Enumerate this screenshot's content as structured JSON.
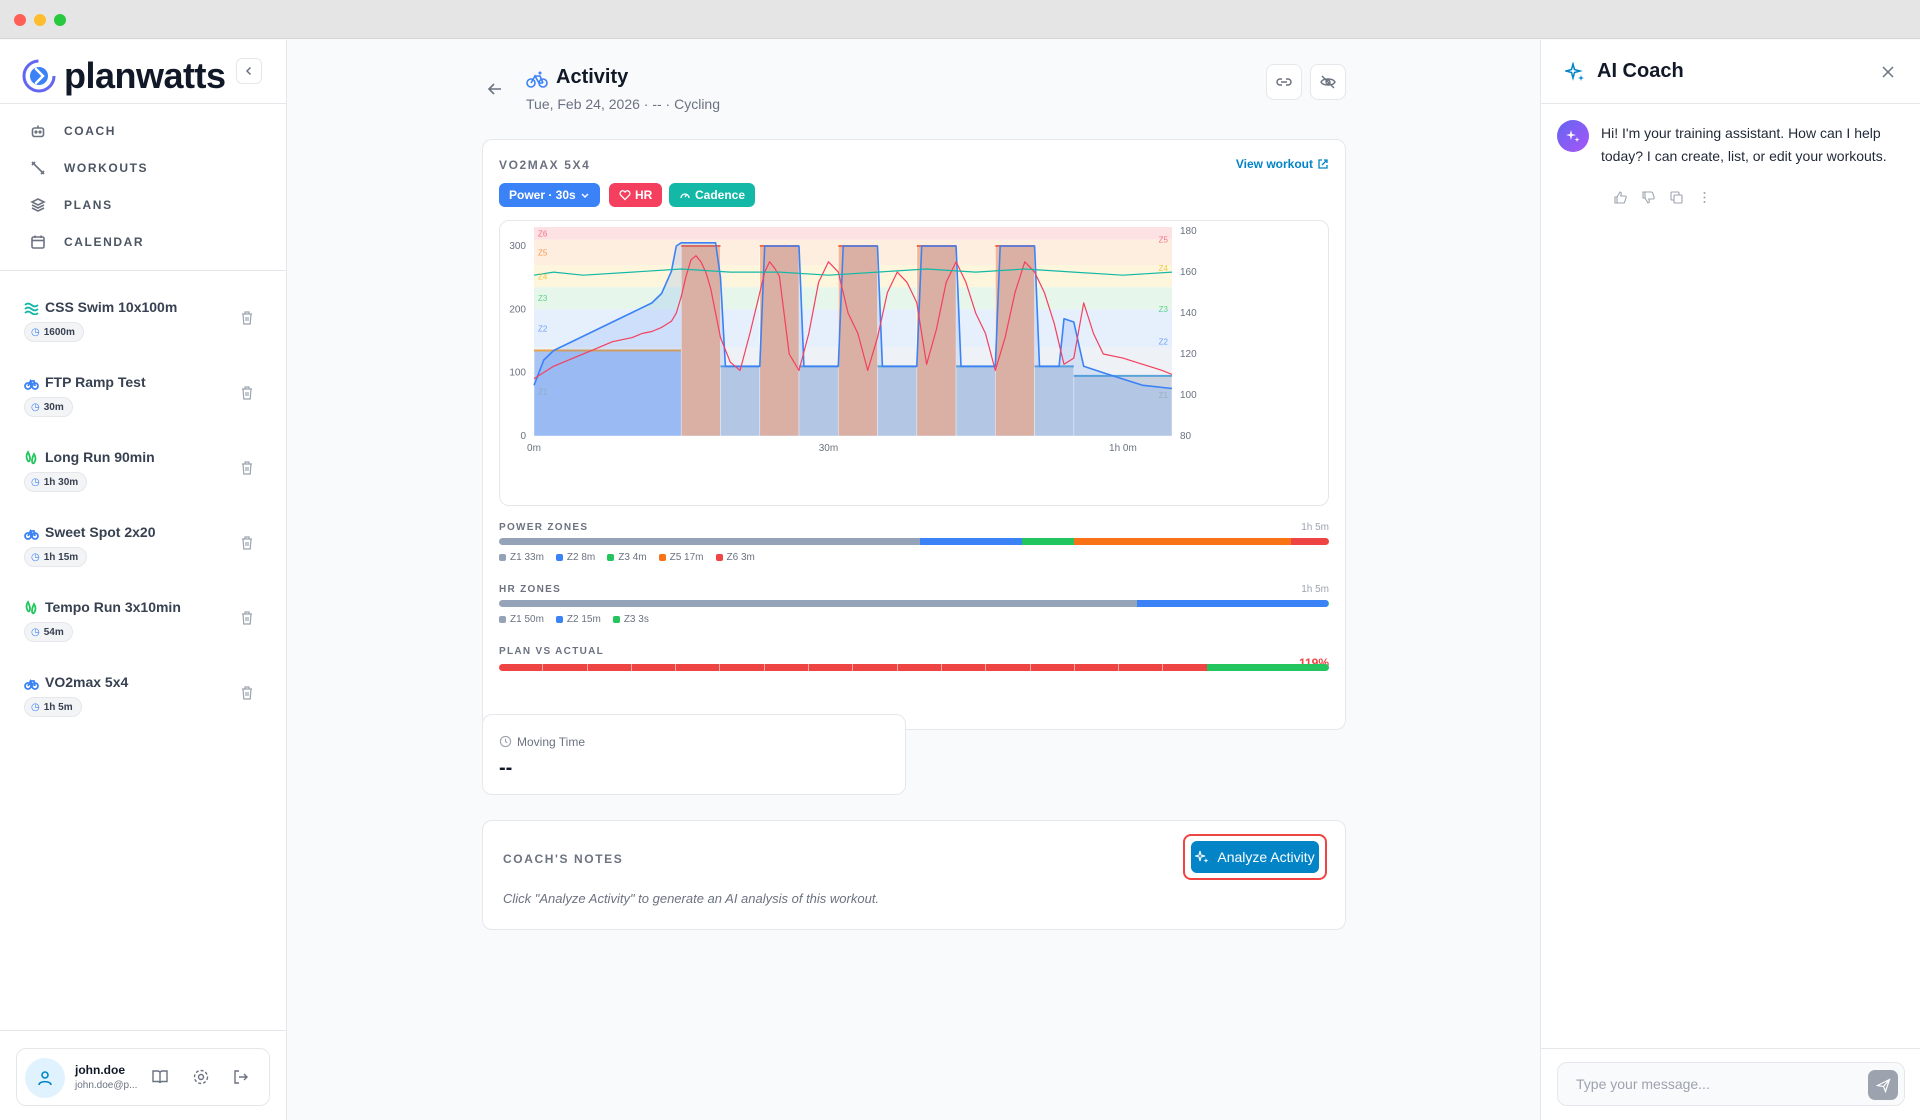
{
  "brand": {
    "name": "planwatts"
  },
  "nav": [
    {
      "label": "COACH",
      "icon": "robot-icon"
    },
    {
      "label": "WORKOUTS",
      "icon": "tools-icon"
    },
    {
      "label": "PLANS",
      "icon": "layers-icon"
    },
    {
      "label": "CALENDAR",
      "icon": "calendar-icon"
    }
  ],
  "workouts": [
    {
      "title": "CSS Swim 10x100m",
      "duration": "1600m",
      "sport": "swim",
      "color": "#14b8a6"
    },
    {
      "title": "FTP Ramp Test",
      "duration": "30m",
      "sport": "bike",
      "color": "#3b82f6"
    },
    {
      "title": "Long Run 90min",
      "duration": "1h 30m",
      "sport": "run",
      "color": "#22c55e"
    },
    {
      "title": "Sweet Spot 2x20",
      "duration": "1h 15m",
      "sport": "bike",
      "color": "#3b82f6"
    },
    {
      "title": "Tempo Run 3x10min",
      "duration": "54m",
      "sport": "run",
      "color": "#22c55e"
    },
    {
      "title": "VO2max 5x4",
      "duration": "1h 5m",
      "sport": "bike",
      "color": "#3b82f6"
    }
  ],
  "user": {
    "name": "john.doe",
    "email": "john.doe@p..."
  },
  "activity": {
    "title": "Activity",
    "subtitle": "Tue, Feb 24, 2026 · -- · Cycling",
    "workout_name": "VO2MAX 5X4",
    "view_link": "View workout",
    "pills": {
      "power": "Power · 30s",
      "hr": "HR",
      "cadence": "Cadence"
    }
  },
  "chart_data": {
    "type": "line",
    "x_ticks": [
      "0m",
      "30m",
      "1h 0m"
    ],
    "y_left_ticks": [
      0,
      100,
      200,
      300
    ],
    "y_right_ticks": [
      80,
      100,
      120,
      140,
      160,
      180
    ],
    "left_zone_labels": [
      "Z6",
      "Z5",
      "Z4",
      "Z3",
      "Z2",
      "Z1"
    ],
    "right_zone_labels": [
      "Z5",
      "Z4",
      "Z3",
      "Z2",
      "Z1"
    ],
    "x_range_min": [
      0,
      65
    ],
    "ylim_left": [
      0,
      330
    ],
    "ylim_right": [
      80,
      182
    ],
    "planned_steps": [
      {
        "start": 0,
        "end": 15,
        "power": 135,
        "zone": "Z1"
      },
      {
        "start": 15,
        "end": 19,
        "power": 300,
        "zone": "Z6"
      },
      {
        "start": 19,
        "end": 23,
        "power": 110,
        "zone": "Z1"
      },
      {
        "start": 23,
        "end": 27,
        "power": 300,
        "zone": "Z6"
      },
      {
        "start": 27,
        "end": 31,
        "power": 110,
        "zone": "Z1"
      },
      {
        "start": 31,
        "end": 35,
        "power": 300,
        "zone": "Z6"
      },
      {
        "start": 35,
        "end": 39,
        "power": 110,
        "zone": "Z1"
      },
      {
        "start": 39,
        "end": 43,
        "power": 300,
        "zone": "Z6"
      },
      {
        "start": 43,
        "end": 47,
        "power": 110,
        "zone": "Z1"
      },
      {
        "start": 47,
        "end": 51,
        "power": 300,
        "zone": "Z6"
      },
      {
        "start": 51,
        "end": 55,
        "power": 110,
        "zone": "Z1"
      },
      {
        "start": 55,
        "end": 65,
        "power": 95,
        "zone": "Z1"
      }
    ],
    "series": [
      {
        "name": "Power",
        "x": [
          0,
          1,
          2,
          4,
          6,
          8,
          10,
          12,
          13,
          14,
          14.5,
          15,
          17,
          18.5,
          19,
          19.5,
          21,
          23,
          23.5,
          25,
          26.5,
          27,
          27.5,
          29,
          31,
          31.5,
          33,
          34.5,
          35,
          35.5,
          37,
          39,
          39.5,
          41,
          42.5,
          43,
          43.5,
          45,
          47,
          47.5,
          49,
          50.5,
          51,
          51.5,
          53,
          53.5,
          54,
          55,
          56,
          58,
          60,
          62,
          65
        ],
        "values": [
          80,
          120,
          135,
          150,
          165,
          180,
          195,
          210,
          225,
          260,
          300,
          305,
          305,
          305,
          250,
          110,
          110,
          110,
          300,
          300,
          300,
          300,
          110,
          110,
          110,
          300,
          300,
          300,
          300,
          110,
          110,
          110,
          300,
          300,
          300,
          300,
          110,
          110,
          110,
          300,
          300,
          300,
          300,
          110,
          110,
          110,
          185,
          180,
          110,
          100,
          90,
          80,
          75
        ]
      },
      {
        "name": "HR",
        "x": [
          0,
          2,
          4,
          6,
          8,
          10,
          11,
          12,
          13,
          14,
          14.5,
          15,
          15.5,
          16,
          16.5,
          17,
          17.5,
          18,
          18.5,
          19,
          20,
          21,
          22,
          23,
          23.5,
          24,
          24.5,
          25,
          26,
          27,
          28,
          29,
          30,
          31,
          31.5,
          32,
          33,
          34,
          35,
          36,
          37,
          38,
          39,
          40,
          41,
          42,
          43,
          44,
          45,
          46,
          47,
          48,
          49,
          50,
          51,
          52,
          53,
          54,
          55,
          56,
          57,
          58,
          60,
          62,
          64,
          65
        ],
        "values": [
          108,
          114,
          118,
          122,
          126,
          128,
          130,
          131,
          133,
          136,
          140,
          148,
          158,
          166,
          168,
          165,
          160,
          152,
          140,
          128,
          116,
          112,
          130,
          150,
          160,
          165,
          162,
          158,
          120,
          112,
          130,
          155,
          165,
          160,
          150,
          140,
          130,
          112,
          128,
          150,
          160,
          155,
          145,
          115,
          132,
          155,
          165,
          155,
          140,
          130,
          112,
          128,
          150,
          165,
          160,
          150,
          135,
          115,
          118,
          145,
          130,
          120,
          118,
          115,
          112,
          110
        ]
      },
      {
        "name": "Cadence",
        "x": [
          0,
          2,
          5,
          10,
          15,
          20,
          25,
          30,
          35,
          40,
          45,
          50,
          55,
          60,
          65
        ],
        "values": [
          85,
          86,
          85,
          86,
          87,
          86,
          86,
          85,
          86,
          87,
          86,
          87,
          86,
          85,
          86
        ]
      }
    ]
  },
  "zones": {
    "power": {
      "label": "POWER ZONES",
      "total": "1h 5m",
      "segments": [
        {
          "name": "Z1",
          "fraction": 0.508,
          "color": "#94a3b8"
        },
        {
          "name": "Z2",
          "fraction": 0.123,
          "color": "#3b82f6"
        },
        {
          "name": "Z3",
          "fraction": 0.062,
          "color": "#22c55e"
        },
        {
          "name": "Z5",
          "fraction": 0.262,
          "color": "#f97316"
        },
        {
          "name": "Z6",
          "fraction": 0.046,
          "color": "#ef4444"
        }
      ],
      "legend": [
        "Z1 33m",
        "Z2 8m",
        "Z3 4m",
        "Z5 17m",
        "Z6 3m"
      ]
    },
    "hr": {
      "label": "HR ZONES",
      "total": "1h 5m",
      "segments": [
        {
          "name": "Z1",
          "fraction": 0.77,
          "color": "#94a3b8"
        },
        {
          "name": "Z2",
          "fraction": 0.23,
          "color": "#3b82f6"
        },
        {
          "name": "Z3",
          "fraction": 0.001,
          "color": "#22c55e"
        }
      ],
      "legend": [
        "Z1 50m",
        "Z2 15m",
        "Z3 3s"
      ]
    },
    "plan_vs_actual": {
      "label": "PLAN VS ACTUAL",
      "percent": "119%",
      "red_fraction": 0.85,
      "green_fraction": 0.15
    }
  },
  "moving_time": {
    "label": "Moving Time",
    "value": "--"
  },
  "notes": {
    "label": "COACH'S NOTES",
    "button": "Analyze Activity",
    "hint": "Click \"Analyze Activity\" to generate an AI analysis of this workout."
  },
  "coach": {
    "title": "AI Coach",
    "message": "Hi! I'm your training assistant. How can I help today? I can create, list, or edit your workouts.",
    "input_placeholder": "Type your message..."
  },
  "colors": {
    "accent": "#0284c7",
    "power": "#3b82f6",
    "hr": "#f43f5e",
    "cadence": "#14b8a6"
  }
}
